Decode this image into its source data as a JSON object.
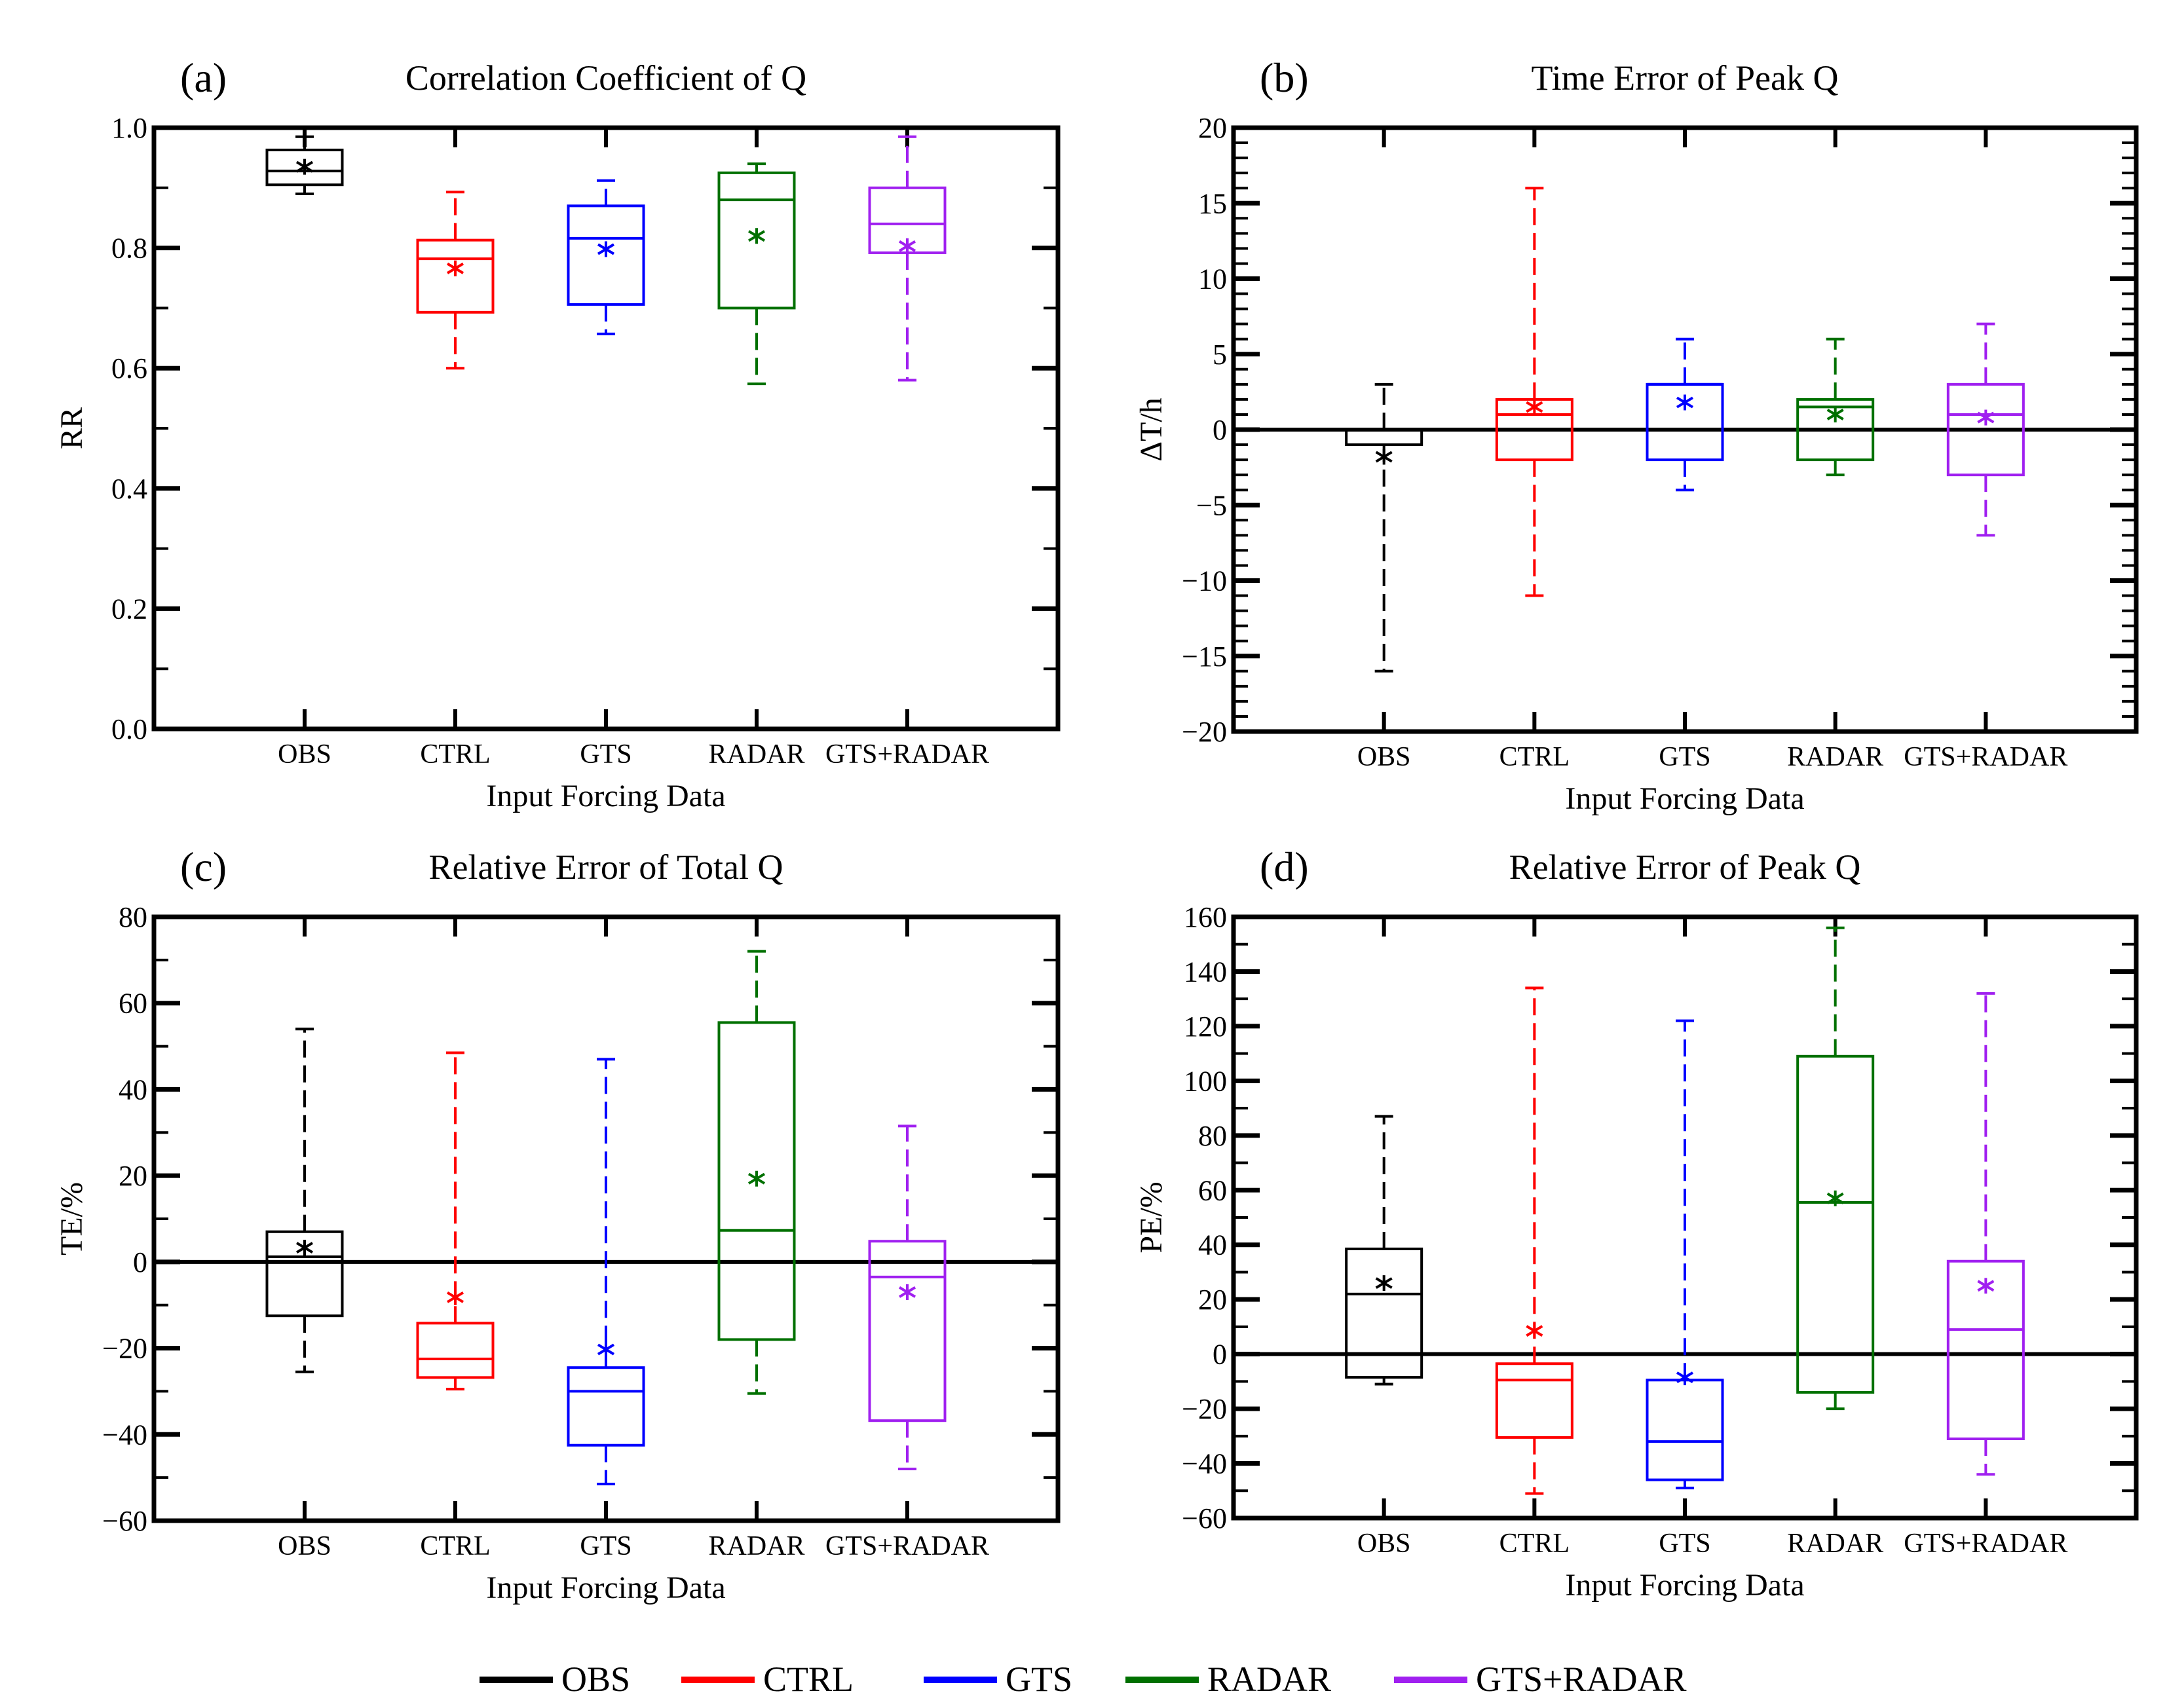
{
  "colors": {
    "OBS": "#000000",
    "CTRL": "#ff0000",
    "GTS": "#0000ff",
    "RADAR": "#007000",
    "GTS+RADAR": "#a020f0"
  },
  "legend": [
    "OBS",
    "CTRL",
    "GTS",
    "RADAR",
    "GTS+RADAR"
  ],
  "chart_data": [
    {
      "type": "box",
      "panel": "(a)",
      "title": "Correlation Coefficient of Q",
      "xlabel": "Input Forcing Data",
      "ylabel": "RR",
      "ylim": [
        0,
        1.0
      ],
      "yticks": [
        0.0,
        0.2,
        0.4,
        0.6,
        0.8,
        1.0
      ],
      "ytick_labels": [
        "0.0",
        "0.2",
        "0.4",
        "0.6",
        "0.8",
        "1.0"
      ],
      "yminor": 0.1,
      "zero_line": false,
      "categories": [
        "OBS",
        "CTRL",
        "GTS",
        "RADAR",
        "GTS+RADAR"
      ],
      "series": [
        {
          "name": "OBS",
          "whisker_low": 0.89,
          "q1": 0.905,
          "median": 0.928,
          "q3": 0.963,
          "whisker_high": 0.985,
          "mean": 0.935
        },
        {
          "name": "CTRL",
          "whisker_low": 0.6,
          "q1": 0.693,
          "median": 0.782,
          "q3": 0.813,
          "whisker_high": 0.893,
          "mean": 0.766
        },
        {
          "name": "GTS",
          "whisker_low": 0.657,
          "q1": 0.706,
          "median": 0.816,
          "q3": 0.87,
          "whisker_high": 0.912,
          "mean": 0.798
        },
        {
          "name": "RADAR",
          "whisker_low": 0.574,
          "q1": 0.7,
          "median": 0.88,
          "q3": 0.925,
          "whisker_high": 0.94,
          "mean": 0.82
        },
        {
          "name": "GTS+RADAR",
          "whisker_low": 0.58,
          "q1": 0.792,
          "median": 0.84,
          "q3": 0.9,
          "whisker_high": 0.985,
          "mean": 0.803
        }
      ]
    },
    {
      "type": "box",
      "panel": "(b)",
      "title": "Time Error of Peak Q",
      "xlabel": "Input Forcing Data",
      "ylabel": "ΔT/h",
      "ylim": [
        -20,
        20
      ],
      "yticks": [
        -20,
        -15,
        -10,
        -5,
        0,
        5,
        10,
        15,
        20
      ],
      "ytick_labels": [
        "−20",
        "−15",
        "−10",
        "−5",
        "0",
        "5",
        "10",
        "15",
        "20"
      ],
      "yminor": 1,
      "zero_line": true,
      "categories": [
        "OBS",
        "CTRL",
        "GTS",
        "RADAR",
        "GTS+RADAR"
      ],
      "series": [
        {
          "name": "OBS",
          "whisker_low": -16,
          "q1": -1,
          "median": 0,
          "q3": 0,
          "whisker_high": 3,
          "mean": -1.8
        },
        {
          "name": "CTRL",
          "whisker_low": -11,
          "q1": -2,
          "median": 1,
          "q3": 2,
          "whisker_high": 16,
          "mean": 1.5
        },
        {
          "name": "GTS",
          "whisker_low": -4,
          "q1": -2,
          "median": 3,
          "q3": 3,
          "whisker_high": 6,
          "mean": 1.8
        },
        {
          "name": "RADAR",
          "whisker_low": -3,
          "q1": -2,
          "median": 1.5,
          "q3": 2,
          "whisker_high": 6,
          "mean": 1.0
        },
        {
          "name": "GTS+RADAR",
          "whisker_low": -7,
          "q1": -3,
          "median": 1,
          "q3": 3,
          "whisker_high": 7,
          "mean": 0.8
        }
      ]
    },
    {
      "type": "box",
      "panel": "(c)",
      "title": "Relative Error of Total Q",
      "xlabel": "Input Forcing Data",
      "ylabel": "TE/%",
      "ylim": [
        -60,
        80
      ],
      "yticks": [
        -60,
        -40,
        -20,
        0,
        20,
        40,
        60,
        80
      ],
      "ytick_labels": [
        "−60",
        "−40",
        "−20",
        "0",
        "20",
        "40",
        "60",
        "80"
      ],
      "yminor": 10,
      "zero_line": true,
      "categories": [
        "OBS",
        "CTRL",
        "GTS",
        "RADAR",
        "GTS+RADAR"
      ],
      "series": [
        {
          "name": "OBS",
          "whisker_low": -25.5,
          "q1": -12.5,
          "median": 1.2,
          "q3": 7,
          "whisker_high": 54,
          "mean": 3.3
        },
        {
          "name": "CTRL",
          "whisker_low": -29.5,
          "q1": -26.8,
          "median": -22.5,
          "q3": -14.2,
          "whisker_high": 48.5,
          "mean": -8.2
        },
        {
          "name": "GTS",
          "whisker_low": -51.5,
          "q1": -42.5,
          "median": -30,
          "q3": -24.5,
          "whisker_high": 47,
          "mean": -20.3
        },
        {
          "name": "RADAR",
          "whisker_low": -30.5,
          "q1": -18,
          "median": 7.3,
          "q3": 55.5,
          "whisker_high": 72,
          "mean": 19.3
        },
        {
          "name": "GTS+RADAR",
          "whisker_low": -48,
          "q1": -36.8,
          "median": -3.5,
          "q3": 4.8,
          "whisker_high": 31.5,
          "mean": -7
        }
      ]
    },
    {
      "type": "box",
      "panel": "(d)",
      "title": "Relative Error of Peak Q",
      "xlabel": "Input Forcing Data",
      "ylabel": "PE/%",
      "ylim": [
        -60,
        160
      ],
      "yticks": [
        -60,
        -40,
        -20,
        0,
        20,
        40,
        60,
        80,
        100,
        120,
        140,
        160
      ],
      "ytick_labels": [
        "−60",
        "−40",
        "−20",
        "0",
        "20",
        "40",
        "60",
        "80",
        "100",
        "120",
        "140",
        "160"
      ],
      "yminor": 10,
      "zero_line": true,
      "categories": [
        "OBS",
        "CTRL",
        "GTS",
        "RADAR",
        "GTS+RADAR"
      ],
      "series": [
        {
          "name": "OBS",
          "whisker_low": -11,
          "q1": -8.5,
          "median": 22,
          "q3": 38.5,
          "whisker_high": 87,
          "mean": 26
        },
        {
          "name": "CTRL",
          "whisker_low": -51,
          "q1": -30.5,
          "median": -9.5,
          "q3": -3.5,
          "whisker_high": 134,
          "mean": 8.5
        },
        {
          "name": "GTS",
          "whisker_low": -49,
          "q1": -46,
          "median": -32,
          "q3": -9.5,
          "whisker_high": 122,
          "mean": -8.5
        },
        {
          "name": "RADAR",
          "whisker_low": -20,
          "q1": -14,
          "median": 55.5,
          "q3": 109,
          "whisker_high": 156,
          "mean": 57
        },
        {
          "name": "GTS+RADAR",
          "whisker_low": -44,
          "q1": -31,
          "median": 9,
          "q3": 34,
          "whisker_high": 132,
          "mean": 25
        }
      ]
    }
  ]
}
